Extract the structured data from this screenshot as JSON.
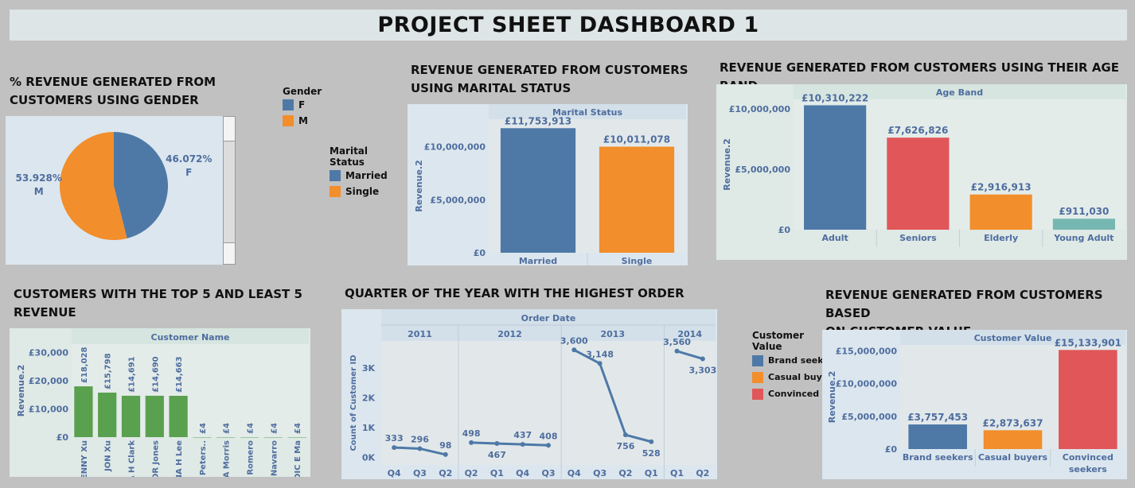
{
  "dashboard_title": "PROJECT SHEET DASHBOARD 1",
  "colors": {
    "blue": "#4e79a7",
    "orange": "#f28e2b",
    "red": "#e15759",
    "teal": "#76b7b2",
    "green": "#59a14f",
    "label": "#4e6d9e"
  },
  "gender_sheet": {
    "title_line1": "% REVENUE GENERATED FROM",
    "title_line2": "CUSTOMERS USING GENDER"
  },
  "gender_legend": {
    "title": "Gender",
    "items": [
      {
        "label": "F",
        "color": "#4e79a7"
      },
      {
        "label": "M",
        "color": "#f28e2b"
      }
    ]
  },
  "marital_legend": {
    "title": "Marital Status",
    "items": [
      {
        "label": "Married",
        "color": "#4e79a7"
      },
      {
        "label": "Single",
        "color": "#f28e2b"
      }
    ]
  },
  "marital_sheet": {
    "title_line1": "REVENUE GENERATED FROM CUSTOMERS",
    "title_line2": "USING MARITAL STATUS"
  },
  "age_sheet": {
    "title": "REVENUE GENERATED FROM CUSTOMERS USING THEIR AGE BAND"
  },
  "top_sheet": {
    "title_line1": "CUSTOMERS WITH THE TOP 5 AND LEAST 5",
    "title_line2": "REVENUE"
  },
  "quarter_sheet": {
    "title": "QUARTER OF THE YEAR WITH THE HIGHEST ORDER"
  },
  "value_sheet": {
    "title_line1": "REVENUE GENERATED FROM CUSTOMERS BASED",
    "title_line2": "ON CUSTOMER VALUE"
  },
  "value_legend": {
    "title": "Customer Value",
    "items": [
      {
        "label": "Brand seek..",
        "color": "#4e79a7"
      },
      {
        "label": "Casual buye..",
        "color": "#f28e2b"
      },
      {
        "label": "Convinced s..",
        "color": "#e15759"
      }
    ]
  },
  "chart_data": [
    {
      "id": "gender",
      "type": "pie",
      "categories": [
        "F",
        "M"
      ],
      "values": [
        46.072,
        53.928
      ],
      "labels": [
        "46.072%",
        "53.928%"
      ],
      "colors": [
        "#4e79a7",
        "#f28e2b"
      ]
    },
    {
      "id": "marital",
      "type": "bar",
      "header": "Marital Status",
      "ylabel": "Revenue.2",
      "categories": [
        "Married",
        "Single"
      ],
      "values": [
        11753913,
        10011078
      ],
      "value_labels": [
        "£11,753,913",
        "£10,011,078"
      ],
      "ylim": [
        0,
        12600000
      ],
      "ticks": [
        0,
        5000000,
        10000000
      ],
      "tick_labels": [
        "£0",
        "£5,000,000",
        "£10,000,000"
      ],
      "colors": [
        "#4e79a7",
        "#f28e2b"
      ]
    },
    {
      "id": "age",
      "type": "bar",
      "header": "Age Band",
      "ylabel": "Revenue.2",
      "categories": [
        "Adult",
        "Seniors",
        "Elderly",
        "Young Adult"
      ],
      "values": [
        10310222,
        7626826,
        2916913,
        911030
      ],
      "value_labels": [
        "£10,310,222",
        "£7,626,826",
        "£2,916,913",
        "£911,030"
      ],
      "ylim": [
        0,
        10800000
      ],
      "ticks": [
        0,
        5000000,
        10000000
      ],
      "tick_labels": [
        "£0",
        "£5,000,000",
        "£10,000,000"
      ],
      "colors": [
        "#4e79a7",
        "#e15759",
        "#f28e2b",
        "#76b7b2"
      ]
    },
    {
      "id": "top5",
      "type": "bar",
      "header": "Customer Name",
      "ylabel": "Revenue.2",
      "categories": [
        "JENNY Xu",
        "JON Xu",
        "HANNA H Clark",
        "TAYLOR Jones",
        "HANNA H Lee",
        "EMMA Peters..",
        "EMMA Morris",
        "DANA Romero",
        "DANA Navarro",
        "CANDIC E Ma"
      ],
      "values": [
        18028,
        15798,
        14691,
        14690,
        14663,
        4,
        4,
        4,
        4,
        4
      ],
      "value_labels": [
        "£18,028",
        "£15,798",
        "£14,691",
        "£14,690",
        "£14,663",
        "£4",
        "£4",
        "£4",
        "£4",
        "£4"
      ],
      "ylim": [
        0,
        33000
      ],
      "ticks": [
        0,
        10000,
        20000,
        30000
      ],
      "tick_labels": [
        "£0",
        "£10,000",
        "£20,000",
        "£30,000"
      ],
      "color": "#59a14f"
    },
    {
      "id": "quarters",
      "type": "line",
      "header": "Order Date",
      "ylabel": "Count of Customer ID",
      "panels": [
        {
          "year": "2011",
          "quarters": [
            "Q4",
            "Q3",
            "Q2"
          ],
          "values": [
            333,
            296,
            98
          ]
        },
        {
          "year": "2012",
          "quarters": [
            "Q2",
            "Q1",
            "Q4",
            "Q3"
          ],
          "values": [
            498,
            467,
            437,
            408
          ]
        },
        {
          "year": "2013",
          "quarters": [
            "Q4",
            "Q3",
            "Q2",
            "Q1"
          ],
          "values": [
            3600,
            3148,
            756,
            528
          ]
        },
        {
          "year": "2014",
          "quarters": [
            "Q1",
            "Q2"
          ],
          "values": [
            3560,
            3303
          ]
        }
      ],
      "ylim": [
        -250,
        3900
      ],
      "ticks": [
        0,
        1000,
        2000,
        3000
      ],
      "tick_labels": [
        "0K",
        "1K",
        "2K",
        "3K"
      ],
      "color": "#4e79a7"
    },
    {
      "id": "value",
      "type": "bar",
      "header": "Customer Value",
      "ylabel": "Revenue.2",
      "categories": [
        "Brand seekers",
        "Casual buyers",
        "Convinced seekers"
      ],
      "values": [
        3757453,
        2873637,
        15133901
      ],
      "value_labels": [
        "£3,757,453",
        "£2,873,637",
        "£15,133,901"
      ],
      "ylim": [
        0,
        15900000
      ],
      "ticks": [
        0,
        5000000,
        10000000,
        15000000
      ],
      "tick_labels": [
        "£0",
        "£5,000,000",
        "£10,000,000",
        "£15,000,000"
      ],
      "colors": [
        "#4e79a7",
        "#f28e2b",
        "#e15759"
      ]
    }
  ]
}
